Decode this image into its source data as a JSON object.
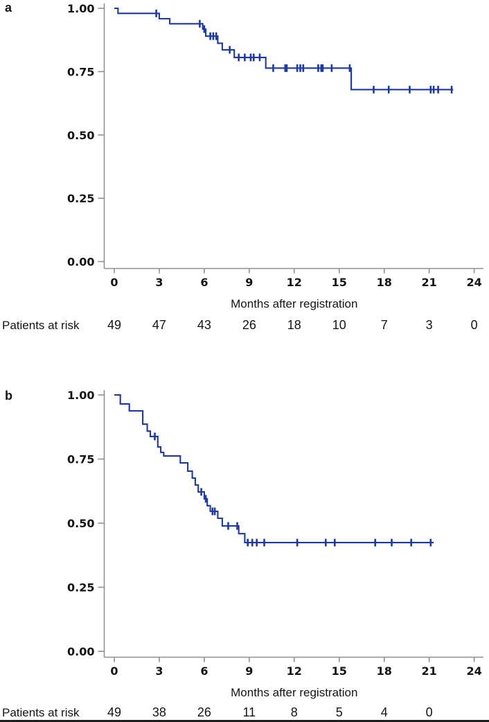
{
  "colors": {
    "curve": "#1c39a6",
    "axis": "#8f8f8f",
    "text": "#141414"
  },
  "chart_data": [
    {
      "type": "line",
      "subtype": "kaplan-meier-step",
      "panel_label": "a",
      "xlabel": "Months after registration",
      "ylabel": "",
      "xlim": [
        0,
        24.6
      ],
      "ylim": [
        0,
        1
      ],
      "grid": false,
      "legend": false,
      "x_ticks": [
        0,
        3,
        6,
        9,
        12,
        15,
        18,
        21,
        24
      ],
      "y_ticks": [
        0,
        0.25,
        0.5,
        0.75,
        1.0
      ],
      "y_tick_labels": [
        "0.00",
        "0.25",
        "0.50",
        "0.75",
        "1.00"
      ],
      "steps": [
        [
          0,
          1.0
        ],
        [
          0.25,
          0.98
        ],
        [
          3.0,
          0.959
        ],
        [
          3.7,
          0.939
        ],
        [
          5.9,
          0.918
        ],
        [
          6.1,
          0.89
        ],
        [
          6.9,
          0.862
        ],
        [
          7.2,
          0.836
        ],
        [
          8.0,
          0.806
        ],
        [
          10.1,
          0.764
        ],
        [
          15.8,
          0.679
        ]
      ],
      "end_month": 22.6,
      "censor_marks": [
        [
          2.8,
          0.98
        ],
        [
          5.7,
          0.939
        ],
        [
          6.0,
          0.918
        ],
        [
          6.4,
          0.89
        ],
        [
          6.6,
          0.89
        ],
        [
          6.8,
          0.89
        ],
        [
          7.7,
          0.836
        ],
        [
          8.3,
          0.806
        ],
        [
          8.7,
          0.806
        ],
        [
          9.1,
          0.806
        ],
        [
          9.3,
          0.806
        ],
        [
          9.7,
          0.806
        ],
        [
          10.6,
          0.764
        ],
        [
          11.4,
          0.764
        ],
        [
          11.5,
          0.764
        ],
        [
          12.2,
          0.764
        ],
        [
          12.4,
          0.764
        ],
        [
          12.6,
          0.764
        ],
        [
          13.6,
          0.764
        ],
        [
          13.8,
          0.764
        ],
        [
          13.9,
          0.764
        ],
        [
          14.5,
          0.764
        ],
        [
          15.7,
          0.764
        ],
        [
          17.3,
          0.679
        ],
        [
          18.3,
          0.679
        ],
        [
          19.7,
          0.679
        ],
        [
          21.1,
          0.679
        ],
        [
          21.3,
          0.679
        ],
        [
          21.6,
          0.679
        ],
        [
          22.5,
          0.679
        ]
      ],
      "risk_table": {
        "label": "Patients at risk",
        "months": [
          0,
          3,
          6,
          9,
          12,
          15,
          18,
          21,
          24
        ],
        "counts": [
          "49",
          "47",
          "43",
          "26",
          "18",
          "10",
          "7",
          "3",
          "0"
        ]
      }
    },
    {
      "type": "line",
      "subtype": "kaplan-meier-step",
      "panel_label": "b",
      "xlabel": "Months after registration",
      "ylabel": "",
      "xlim": [
        0,
        24.6
      ],
      "ylim": [
        0,
        1
      ],
      "grid": false,
      "legend": false,
      "x_ticks": [
        0,
        3,
        6,
        9,
        12,
        15,
        18,
        21,
        24
      ],
      "y_ticks": [
        0,
        0.25,
        0.5,
        0.75,
        1.0
      ],
      "y_tick_labels": [
        "0.00",
        "0.25",
        "0.50",
        "0.75",
        "1.00"
      ],
      "steps": [
        [
          0,
          1.0
        ],
        [
          0.4,
          0.965
        ],
        [
          1.0,
          0.938
        ],
        [
          1.9,
          0.886
        ],
        [
          2.2,
          0.859
        ],
        [
          2.4,
          0.838
        ],
        [
          2.9,
          0.797
        ],
        [
          3.1,
          0.776
        ],
        [
          3.3,
          0.762
        ],
        [
          4.4,
          0.735
        ],
        [
          4.9,
          0.703
        ],
        [
          5.2,
          0.676
        ],
        [
          5.4,
          0.649
        ],
        [
          5.6,
          0.622
        ],
        [
          6.0,
          0.595
        ],
        [
          6.2,
          0.568
        ],
        [
          6.4,
          0.546
        ],
        [
          6.9,
          0.519
        ],
        [
          7.2,
          0.489
        ],
        [
          8.3,
          0.459
        ],
        [
          8.7,
          0.424
        ]
      ],
      "end_month": 21.3,
      "censor_marks": [
        [
          2.7,
          0.838
        ],
        [
          5.8,
          0.622
        ],
        [
          6.1,
          0.595
        ],
        [
          6.55,
          0.546
        ],
        [
          6.7,
          0.546
        ],
        [
          7.6,
          0.489
        ],
        [
          8.2,
          0.489
        ],
        [
          8.9,
          0.424
        ],
        [
          9.2,
          0.424
        ],
        [
          9.5,
          0.424
        ],
        [
          10.0,
          0.424
        ],
        [
          12.2,
          0.424
        ],
        [
          14.1,
          0.424
        ],
        [
          14.7,
          0.424
        ],
        [
          17.4,
          0.424
        ],
        [
          18.5,
          0.424
        ],
        [
          19.8,
          0.424
        ],
        [
          21.1,
          0.424
        ]
      ],
      "risk_table": {
        "label": "Patients at risk",
        "months": [
          0,
          3,
          6,
          9,
          12,
          15,
          18,
          21
        ],
        "counts": [
          "49",
          "38",
          "26",
          "11",
          "8",
          "5",
          "4",
          "0"
        ]
      }
    }
  ]
}
